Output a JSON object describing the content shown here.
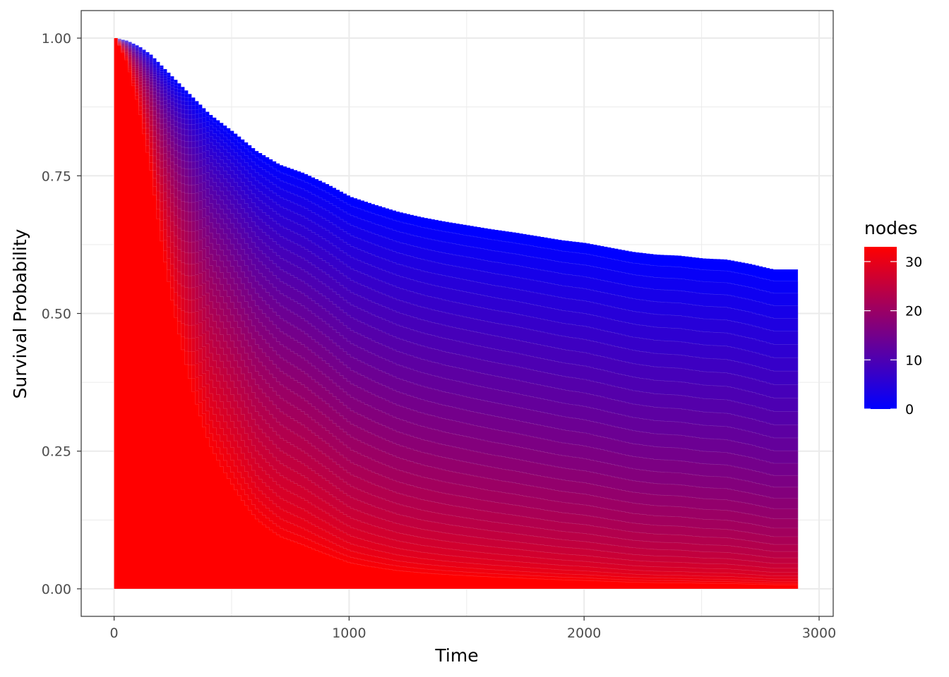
{
  "chart_data": {
    "type": "area",
    "title": "",
    "xlabel": "Time",
    "ylabel": "Survival Probability",
    "xlim": [
      -140,
      3060
    ],
    "ylim": [
      -0.05,
      1.05
    ],
    "x_ticks": [
      {
        "value": 0,
        "label": "0"
      },
      {
        "value": 1000,
        "label": "1000"
      },
      {
        "value": 2000,
        "label": "2000"
      },
      {
        "value": 3000,
        "label": "3000"
      }
    ],
    "y_ticks": [
      {
        "value": 0,
        "label": "0.00"
      },
      {
        "value": 0.25,
        "label": "0.25"
      },
      {
        "value": 0.5,
        "label": "0.50"
      },
      {
        "value": 0.75,
        "label": "0.75"
      },
      {
        "value": 1,
        "label": "1.00"
      }
    ],
    "grid": true,
    "legend": {
      "title": "nodes",
      "position": "right",
      "type": "colorbar",
      "range": [
        0,
        33
      ],
      "ticks": [
        {
          "value": 0,
          "label": "0"
        },
        {
          "value": 10,
          "label": "10"
        },
        {
          "value": 20,
          "label": "20"
        },
        {
          "value": 30,
          "label": "30"
        }
      ],
      "low_color": "#0000FF",
      "high_color": "#FF0000"
    },
    "node_range": [
      0,
      33
    ],
    "x_end": 2910,
    "baseline_curve_nodes_0": {
      "x": [
        0,
        50,
        100,
        150,
        200,
        300,
        400,
        500,
        600,
        700,
        800,
        900,
        1000,
        1100,
        1200,
        1300,
        1400,
        1500,
        1600,
        1700,
        1800,
        1900,
        2000,
        2100,
        2200,
        2300,
        2400,
        2500,
        2600,
        2700,
        2800,
        2910
      ],
      "y": [
        1.0,
        0.995,
        0.985,
        0.97,
        0.948,
        0.905,
        0.862,
        0.83,
        0.795,
        0.77,
        0.755,
        0.735,
        0.712,
        0.698,
        0.685,
        0.675,
        0.667,
        0.66,
        0.653,
        0.647,
        0.64,
        0.633,
        0.628,
        0.62,
        0.612,
        0.607,
        0.605,
        0.6,
        0.598,
        0.59,
        0.58,
        0.58
      ]
    }
  }
}
